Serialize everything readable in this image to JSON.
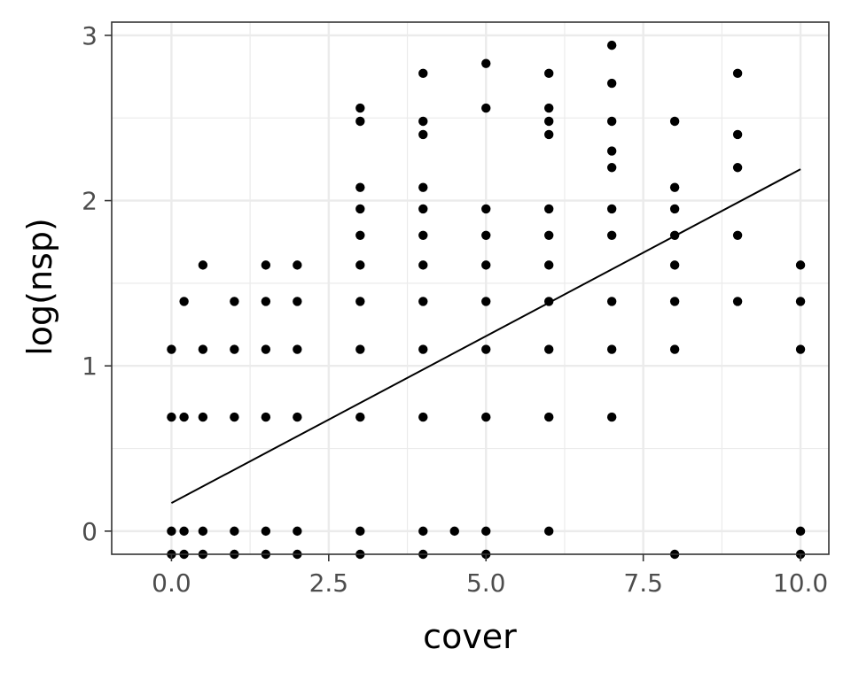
{
  "chart_data": {
    "type": "scatter",
    "title": "",
    "xlabel": "cover",
    "ylabel": "log(nsp)",
    "xlim": [
      -0.95,
      10.45
    ],
    "ylim": [
      -0.14,
      3.08
    ],
    "x_ticks": [
      0,
      2.5,
      5,
      7.5,
      10
    ],
    "x_tick_labels": [
      "0.0",
      "2.5",
      "5.0",
      "7.5",
      "10.0"
    ],
    "y_ticks": [
      0,
      1,
      2,
      3
    ],
    "y_tick_labels": [
      "0",
      "1",
      "2",
      "3"
    ],
    "grid": true,
    "legend": "none",
    "point_color": "#000000",
    "fit_line": {
      "type": "linear",
      "x": [
        0,
        10
      ],
      "y": [
        0.17,
        2.19
      ],
      "color": "#000000"
    },
    "points": [
      {
        "x": 0,
        "y": -0.14
      },
      {
        "x": 0,
        "y": 0
      },
      {
        "x": 0,
        "y": 0.69
      },
      {
        "x": 0,
        "y": 1.1
      },
      {
        "x": 0.2,
        "y": -0.14
      },
      {
        "x": 0.2,
        "y": 0
      },
      {
        "x": 0.2,
        "y": 0.69
      },
      {
        "x": 0.2,
        "y": 1.39
      },
      {
        "x": 0.5,
        "y": -0.14
      },
      {
        "x": 0.5,
        "y": 0
      },
      {
        "x": 0.5,
        "y": 0.69
      },
      {
        "x": 0.5,
        "y": 1.1
      },
      {
        "x": 0.5,
        "y": 1.61
      },
      {
        "x": 1,
        "y": -0.14
      },
      {
        "x": 1,
        "y": 0
      },
      {
        "x": 1,
        "y": 0.69
      },
      {
        "x": 1,
        "y": 1.1
      },
      {
        "x": 1,
        "y": 1.39
      },
      {
        "x": 1.5,
        "y": -0.14
      },
      {
        "x": 1.5,
        "y": 0
      },
      {
        "x": 1.5,
        "y": 0.69
      },
      {
        "x": 1.5,
        "y": 1.1
      },
      {
        "x": 1.5,
        "y": 1.39
      },
      {
        "x": 1.5,
        "y": 1.61
      },
      {
        "x": 2,
        "y": -0.14
      },
      {
        "x": 2,
        "y": 0
      },
      {
        "x": 2,
        "y": 0.69
      },
      {
        "x": 2,
        "y": 1.1
      },
      {
        "x": 2,
        "y": 1.39
      },
      {
        "x": 2,
        "y": 1.61
      },
      {
        "x": 3,
        "y": -0.14
      },
      {
        "x": 3,
        "y": 0
      },
      {
        "x": 3,
        "y": 0.69
      },
      {
        "x": 3,
        "y": 1.1
      },
      {
        "x": 3,
        "y": 1.39
      },
      {
        "x": 3,
        "y": 1.61
      },
      {
        "x": 3,
        "y": 1.79
      },
      {
        "x": 3,
        "y": 1.95
      },
      {
        "x": 3,
        "y": 2.08
      },
      {
        "x": 3,
        "y": 2.48
      },
      {
        "x": 3,
        "y": 2.56
      },
      {
        "x": 4,
        "y": -0.14
      },
      {
        "x": 4,
        "y": 0
      },
      {
        "x": 4,
        "y": 0.69
      },
      {
        "x": 4,
        "y": 1.1
      },
      {
        "x": 4,
        "y": 1.39
      },
      {
        "x": 4,
        "y": 1.61
      },
      {
        "x": 4,
        "y": 1.79
      },
      {
        "x": 4,
        "y": 1.95
      },
      {
        "x": 4,
        "y": 2.08
      },
      {
        "x": 4,
        "y": 2.4
      },
      {
        "x": 4,
        "y": 2.48
      },
      {
        "x": 4,
        "y": 2.77
      },
      {
        "x": 4.5,
        "y": 0
      },
      {
        "x": 5,
        "y": -0.14
      },
      {
        "x": 5,
        "y": 0
      },
      {
        "x": 5,
        "y": 0.69
      },
      {
        "x": 5,
        "y": 1.1
      },
      {
        "x": 5,
        "y": 1.39
      },
      {
        "x": 5,
        "y": 1.61
      },
      {
        "x": 5,
        "y": 1.79
      },
      {
        "x": 5,
        "y": 1.95
      },
      {
        "x": 5,
        "y": 2.56
      },
      {
        "x": 5,
        "y": 2.83
      },
      {
        "x": 6,
        "y": 0
      },
      {
        "x": 6,
        "y": 0.69
      },
      {
        "x": 6,
        "y": 1.1
      },
      {
        "x": 6,
        "y": 1.39
      },
      {
        "x": 6,
        "y": 1.61
      },
      {
        "x": 6,
        "y": 1.79
      },
      {
        "x": 6,
        "y": 1.95
      },
      {
        "x": 6,
        "y": 2.4
      },
      {
        "x": 6,
        "y": 2.48
      },
      {
        "x": 6,
        "y": 2.56
      },
      {
        "x": 6,
        "y": 2.77
      },
      {
        "x": 7,
        "y": 0.69
      },
      {
        "x": 7,
        "y": 1.1
      },
      {
        "x": 7,
        "y": 1.39
      },
      {
        "x": 7,
        "y": 1.79
      },
      {
        "x": 7,
        "y": 1.95
      },
      {
        "x": 7,
        "y": 2.2
      },
      {
        "x": 7,
        "y": 2.3
      },
      {
        "x": 7,
        "y": 2.48
      },
      {
        "x": 7,
        "y": 2.71
      },
      {
        "x": 7,
        "y": 2.94
      },
      {
        "x": 8,
        "y": -0.14
      },
      {
        "x": 8,
        "y": 1.1
      },
      {
        "x": 8,
        "y": 1.39
      },
      {
        "x": 8,
        "y": 1.61
      },
      {
        "x": 8,
        "y": 1.79
      },
      {
        "x": 8,
        "y": 1.95
      },
      {
        "x": 8,
        "y": 2.08
      },
      {
        "x": 8,
        "y": 2.48
      },
      {
        "x": 9,
        "y": 1.39
      },
      {
        "x": 9,
        "y": 1.79
      },
      {
        "x": 9,
        "y": 2.2
      },
      {
        "x": 9,
        "y": 2.4
      },
      {
        "x": 9,
        "y": 2.77
      },
      {
        "x": 10,
        "y": -0.14
      },
      {
        "x": 10,
        "y": 0
      },
      {
        "x": 10,
        "y": 1.1
      },
      {
        "x": 10,
        "y": 1.39
      },
      {
        "x": 10,
        "y": 1.61
      }
    ]
  }
}
